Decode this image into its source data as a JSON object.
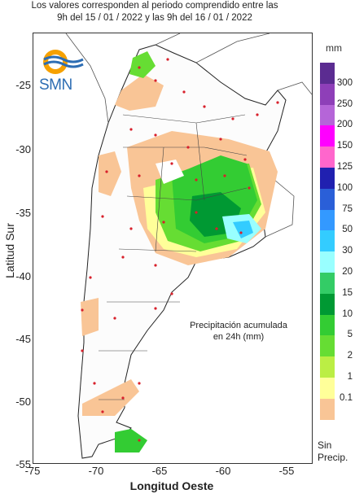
{
  "header": {
    "line1": "Los valores corresponden al periodo comprendido entre las",
    "line2": "9h del 15 / 01 / 2022  y las 9h del 16 / 01 / 2022"
  },
  "logo": {
    "text": "SMN"
  },
  "axes": {
    "xlabel": "Longitud Oeste",
    "ylabel": "Latitud Sur",
    "xticks": [
      "-75",
      "-70",
      "-65",
      "-60",
      "-55"
    ],
    "yticks": [
      "-25",
      "-30",
      "-35",
      "-40",
      "-45",
      "-50",
      "-55"
    ]
  },
  "legend": {
    "unit": "mm",
    "labels": [
      "300",
      "250",
      "200",
      "150",
      "125",
      "100",
      "75",
      "50",
      "30",
      "20",
      "15",
      "10",
      "5",
      "2",
      "1",
      "0.1"
    ],
    "colors": [
      "#5b2c91",
      "#8e3fb8",
      "#b565d8",
      "#ff00ff",
      "#ff66cc",
      "#2020b0",
      "#2a5fd8",
      "#3399ff",
      "#33ccff",
      "#99ffff",
      "#33cc66",
      "#009933",
      "#33cc33",
      "#66dd33",
      "#bbee44",
      "#ffff99",
      "#f9c596"
    ],
    "no_precip": [
      "Sin",
      "Precip."
    ]
  },
  "annotation": {
    "line1": "Precipitación acumulada",
    "line2": "en 24h (mm)"
  }
}
